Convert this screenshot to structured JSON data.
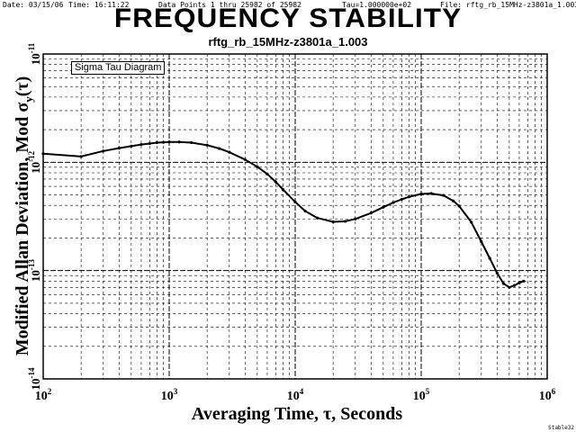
{
  "header": {
    "date": "Date: 03/15/06",
    "time": "Time: 16:11:22",
    "points": "Data Points 1 thru 25982 of 25982",
    "tau": "Tau=1.000000e+02",
    "file": "File: rftg_rb_15MHz-z3801a_1.003"
  },
  "stamp": "Stable32",
  "chart_data": {
    "type": "line",
    "title": "FREQUENCY STABILITY",
    "subtitle": "rftg_rb_15MHz-z3801a_1.003",
    "xlabel": "Averaging Time, τ, Seconds",
    "ylabel": "Modified Allan Deviation, Mod σ",
    "ylabel_sub": "y",
    "ylabel_suffix": "(τ)",
    "legend": "Sigma Tau Diagram",
    "x_scale": "log",
    "y_scale": "log",
    "xlim": [
      100,
      1000000
    ],
    "ylim": [
      1e-14,
      1e-11
    ],
    "grid": true,
    "x_ticks": [
      {
        "base": "10",
        "exp": "2",
        "value": 100
      },
      {
        "base": "10",
        "exp": "3",
        "value": 1000
      },
      {
        "base": "10",
        "exp": "4",
        "value": 10000
      },
      {
        "base": "10",
        "exp": "5",
        "value": 100000
      },
      {
        "base": "10",
        "exp": "6",
        "value": 1000000
      }
    ],
    "y_ticks": [
      {
        "base": "10",
        "exp": "-11",
        "value": 1e-11
      },
      {
        "base": "10",
        "exp": "-12",
        "value": 1e-12
      },
      {
        "base": "10",
        "exp": "-13",
        "value": 1e-13
      },
      {
        "base": "10",
        "exp": "-14",
        "value": 1e-14
      }
    ],
    "series": [
      {
        "color": "#000000",
        "x": [
          100,
          200,
          300,
          400,
          500,
          600,
          700,
          800,
          900,
          1000,
          1200,
          1500,
          2000,
          2500,
          3000,
          4000,
          5000,
          6000,
          7000,
          8000,
          10000,
          12000,
          15000,
          20000,
          25000,
          30000,
          40000,
          50000,
          60000,
          70000,
          80000,
          100000,
          120000,
          150000,
          180000,
          200000,
          250000,
          300000,
          350000,
          400000,
          450000,
          500000,
          550000,
          600000,
          650000
        ],
        "y": [
          1.2e-12,
          1.13e-12,
          1.27e-12,
          1.35e-12,
          1.41e-12,
          1.46e-12,
          1.49e-12,
          1.52e-12,
          1.53e-12,
          1.54e-12,
          1.54e-12,
          1.52e-12,
          1.44e-12,
          1.34e-12,
          1.24e-12,
          1.06e-12,
          9.1e-13,
          7.8e-13,
          6.6e-13,
          5.6e-13,
          4.3e-13,
          3.55e-13,
          3.06e-13,
          2.82e-13,
          2.85e-13,
          3e-13,
          3.4e-13,
          3.85e-13,
          4.25e-13,
          4.55e-13,
          4.8e-13,
          5.1e-13,
          5.15e-13,
          4.95e-13,
          4.4e-13,
          3.95e-13,
          2.8e-13,
          1.85e-13,
          1.3e-13,
          9.5e-14,
          7.6e-14,
          7e-14,
          7.3e-14,
          7.7e-14,
          8e-14
        ]
      }
    ]
  }
}
